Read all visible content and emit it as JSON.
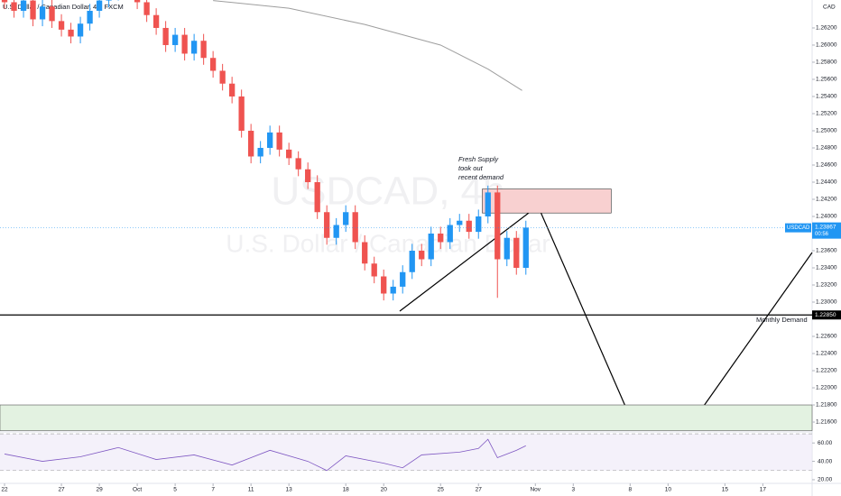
{
  "chart_data": {
    "type": "candlestick",
    "title": "U.S. Dollar / Canadian Dollar, 4h, FXCM",
    "watermark": "USDCAD, 4h",
    "watermark_sub": "U.S. Dollar / Canadian Dollar",
    "currency": "CAD",
    "up_color": "#2196f3",
    "down_color": "#ef5350",
    "xlim": [
      -0.24,
      42.6
    ],
    "xticks": [
      {
        "value": 0,
        "label": "22"
      },
      {
        "value": 3,
        "label": "27"
      },
      {
        "value": 5,
        "label": "29"
      },
      {
        "value": 7,
        "label": "Oct"
      },
      {
        "value": 9,
        "label": "5"
      },
      {
        "value": 11,
        "label": "7"
      },
      {
        "value": 13,
        "label": "11"
      },
      {
        "value": 15,
        "label": "13"
      },
      {
        "value": 18,
        "label": "18"
      },
      {
        "value": 20,
        "label": "20"
      },
      {
        "value": 23,
        "label": "25"
      },
      {
        "value": 25,
        "label": "27"
      },
      {
        "value": 28,
        "label": "Nov"
      },
      {
        "value": 30,
        "label": "3"
      },
      {
        "value": 33,
        "label": "8"
      },
      {
        "value": 35,
        "label": "10"
      },
      {
        "value": 38,
        "label": "15"
      },
      {
        "value": 40,
        "label": "17"
      }
    ],
    "ylim": [
      1.21495,
      1.26526
    ],
    "yticks": [
      {
        "value": 1.262,
        "label": "1.26200"
      },
      {
        "value": 1.26,
        "label": "1.26000"
      },
      {
        "value": 1.258,
        "label": "1.25800"
      },
      {
        "value": 1.256,
        "label": "1.25600"
      },
      {
        "value": 1.254,
        "label": "1.25400"
      },
      {
        "value": 1.252,
        "label": "1.25200"
      },
      {
        "value": 1.25,
        "label": "1.25000"
      },
      {
        "value": 1.248,
        "label": "1.24800"
      },
      {
        "value": 1.246,
        "label": "1.24600"
      },
      {
        "value": 1.244,
        "label": "1.24400"
      },
      {
        "value": 1.242,
        "label": "1.24200"
      },
      {
        "value": 1.24,
        "label": "1.24000"
      },
      {
        "value": 1.236,
        "label": "1.23600"
      },
      {
        "value": 1.234,
        "label": "1.23400"
      },
      {
        "value": 1.232,
        "label": "1.23200"
      },
      {
        "value": 1.23,
        "label": "1.23000"
      },
      {
        "value": 1.226,
        "label": "1.22600"
      },
      {
        "value": 1.224,
        "label": "1.22400"
      },
      {
        "value": 1.222,
        "label": "1.22200"
      },
      {
        "value": 1.22,
        "label": "1.22000"
      },
      {
        "value": 1.218,
        "label": "1.21800"
      },
      {
        "value": 1.216,
        "label": "1.21600"
      }
    ],
    "x": [
      0,
      0.5,
      1,
      1.5,
      2,
      2.5,
      3,
      3.5,
      4,
      4.5,
      5,
      5.5,
      6,
      6.5,
      7,
      7.5,
      8,
      8.5,
      9,
      9.5,
      10,
      10.5,
      11,
      11.5,
      12,
      12.5,
      13,
      13.5,
      14,
      14.5,
      15,
      15.5,
      16,
      16.5,
      17,
      17.5,
      18,
      18.5,
      19,
      19.5,
      20,
      20.5,
      21,
      21.5,
      22,
      22.5,
      23,
      23.5,
      24,
      24.5,
      25,
      25.5,
      26,
      26.5,
      27,
      27.5
    ],
    "open": [
      1.266,
      1.265,
      1.264,
      1.2652,
      1.263,
      1.2645,
      1.2628,
      1.2618,
      1.261,
      1.2625,
      1.264,
      1.2652,
      1.266,
      1.2668,
      1.2662,
      1.265,
      1.2635,
      1.262,
      1.26,
      1.2612,
      1.259,
      1.2605,
      1.2585,
      1.257,
      1.2555,
      1.254,
      1.25,
      1.247,
      1.248,
      1.2498,
      1.2478,
      1.2468,
      1.2455,
      1.244,
      1.2405,
      1.2375,
      1.239,
      1.2405,
      1.237,
      1.2345,
      1.233,
      1.231,
      1.2318,
      1.2335,
      1.236,
      1.235,
      1.238,
      1.237,
      1.239,
      1.2395,
      1.2382,
      1.24,
      1.2428,
      1.235,
      1.2375,
      1.234
    ],
    "high": [
      1.2668,
      1.2658,
      1.266,
      1.266,
      1.2653,
      1.2653,
      1.2636,
      1.2626,
      1.2633,
      1.2648,
      1.266,
      1.2668,
      1.2676,
      1.2676,
      1.267,
      1.2658,
      1.2643,
      1.2628,
      1.262,
      1.262,
      1.2613,
      1.2613,
      1.2593,
      1.2578,
      1.2563,
      1.2548,
      1.2508,
      1.2488,
      1.2506,
      1.2506,
      1.2486,
      1.2476,
      1.2463,
      1.2448,
      1.2413,
      1.2398,
      1.2413,
      1.2413,
      1.2378,
      1.2353,
      1.2338,
      1.2326,
      1.2343,
      1.2368,
      1.2368,
      1.2388,
      1.2388,
      1.2398,
      1.2403,
      1.2403,
      1.2408,
      1.2436,
      1.2436,
      1.2383,
      1.2383,
      1.2395
    ],
    "low": [
      1.2642,
      1.2632,
      1.2632,
      1.2622,
      1.2622,
      1.262,
      1.261,
      1.2602,
      1.2602,
      1.2617,
      1.2632,
      1.2644,
      1.2652,
      1.2654,
      1.2642,
      1.2627,
      1.2612,
      1.2592,
      1.2592,
      1.2582,
      1.2582,
      1.2577,
      1.2562,
      1.2547,
      1.2532,
      1.2492,
      1.2462,
      1.2462,
      1.2472,
      1.247,
      1.246,
      1.2447,
      1.2432,
      1.2397,
      1.2367,
      1.2367,
      1.2382,
      1.2362,
      1.2337,
      1.2322,
      1.2302,
      1.2302,
      1.231,
      1.2327,
      1.2342,
      1.2342,
      1.2362,
      1.2362,
      1.2382,
      1.2374,
      1.2374,
      1.2392,
      1.2305,
      1.2342,
      1.2332,
      1.2332
    ],
    "close": [
      1.265,
      1.264,
      1.2652,
      1.263,
      1.2645,
      1.2628,
      1.2618,
      1.261,
      1.2625,
      1.264,
      1.2652,
      1.266,
      1.2668,
      1.2662,
      1.265,
      1.2635,
      1.262,
      1.26,
      1.2612,
      1.259,
      1.2605,
      1.2585,
      1.257,
      1.2555,
      1.254,
      1.25,
      1.247,
      1.248,
      1.2498,
      1.2478,
      1.2468,
      1.2455,
      1.244,
      1.2405,
      1.2375,
      1.239,
      1.2405,
      1.237,
      1.2345,
      1.233,
      1.231,
      1.2318,
      1.2335,
      1.236,
      1.235,
      1.238,
      1.237,
      1.239,
      1.2395,
      1.2382,
      1.24,
      1.2428,
      1.235,
      1.2375,
      1.234,
      1.2387
    ],
    "ma": {
      "color": "#9e9e9e",
      "x": [
        11,
        15,
        19,
        23,
        25.5,
        27.3
      ],
      "values": [
        1.2652,
        1.2643,
        1.2624,
        1.26,
        1.2572,
        1.2547
      ]
    },
    "price_line": {
      "name": "USDCAD",
      "value": 1.23867,
      "countdown": "00:56",
      "color": "#2196f3"
    },
    "demand_line": {
      "value": 1.2285,
      "label": "1.22850",
      "text": "Monthly Demand"
    },
    "supply_zone": {
      "x": [
        25.2,
        32
      ],
      "prices": [
        1.2404,
        1.2432
      ],
      "color": "#f8d0d0"
    },
    "demand_zone": {
      "prices": [
        1.215,
        1.218
      ],
      "color": "#e3f2e1"
    },
    "annotation": [
      "Fresh Supply",
      "took out",
      "recent demand"
    ],
    "rsi": {
      "color": "#7e57c2",
      "ylim": [
        17,
        71
      ],
      "bands": [
        30,
        70
      ],
      "yticks": [
        {
          "value": 60,
          "label": "60.00"
        },
        {
          "value": 40,
          "label": "40.00"
        },
        {
          "value": 20,
          "label": "20.00"
        }
      ],
      "x": [
        0,
        2,
        4,
        6,
        8,
        10,
        12,
        14,
        16,
        17,
        18,
        20,
        21,
        22,
        24,
        25,
        25.5,
        26,
        27,
        27.5
      ],
      "values": [
        48,
        40,
        45,
        55,
        42,
        47,
        36,
        52,
        40,
        30,
        46,
        38,
        33,
        47,
        50,
        54,
        64,
        44,
        52,
        57
      ]
    }
  }
}
